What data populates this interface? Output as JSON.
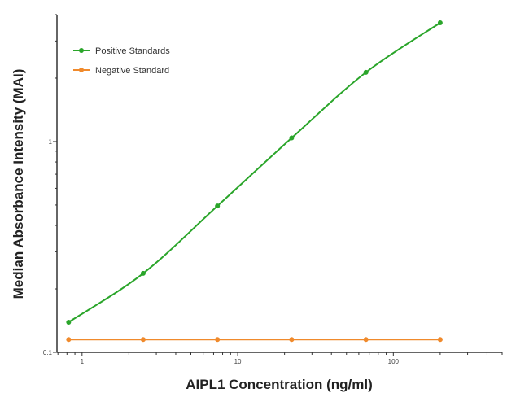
{
  "chart_data": {
    "type": "line",
    "title": "",
    "xlabel": "AIPL1 Concentration (ng/ml)",
    "ylabel": "Median Absorbance Intensity (MAI)",
    "xscale": "log",
    "yscale": "log",
    "xlim": [
      0.69,
      500
    ],
    "ylim": [
      0.1,
      4
    ],
    "x_ticks": [
      {
        "value": 1,
        "label": "1"
      },
      {
        "value": 10,
        "label": "10"
      },
      {
        "value": 100,
        "label": "100"
      }
    ],
    "y_ticks": [
      {
        "value": 0.1,
        "label": "0.1"
      },
      {
        "value": 1,
        "label": "1"
      }
    ],
    "grid": false,
    "legend_position": "top-left",
    "x": [
      0.82,
      2.47,
      7.41,
      22.22,
      66.67,
      200
    ],
    "series": [
      {
        "name": "Positive Standards",
        "color": "#2aa52a",
        "values": [
          0.139,
          0.237,
          0.495,
          1.04,
          2.13,
          3.66
        ],
        "curve": "smooth"
      },
      {
        "name": "Negative Standard",
        "color": "#f08a2c",
        "values": [
          0.115,
          0.115,
          0.115,
          0.115,
          0.115,
          0.115
        ],
        "curve": "straight"
      }
    ]
  }
}
